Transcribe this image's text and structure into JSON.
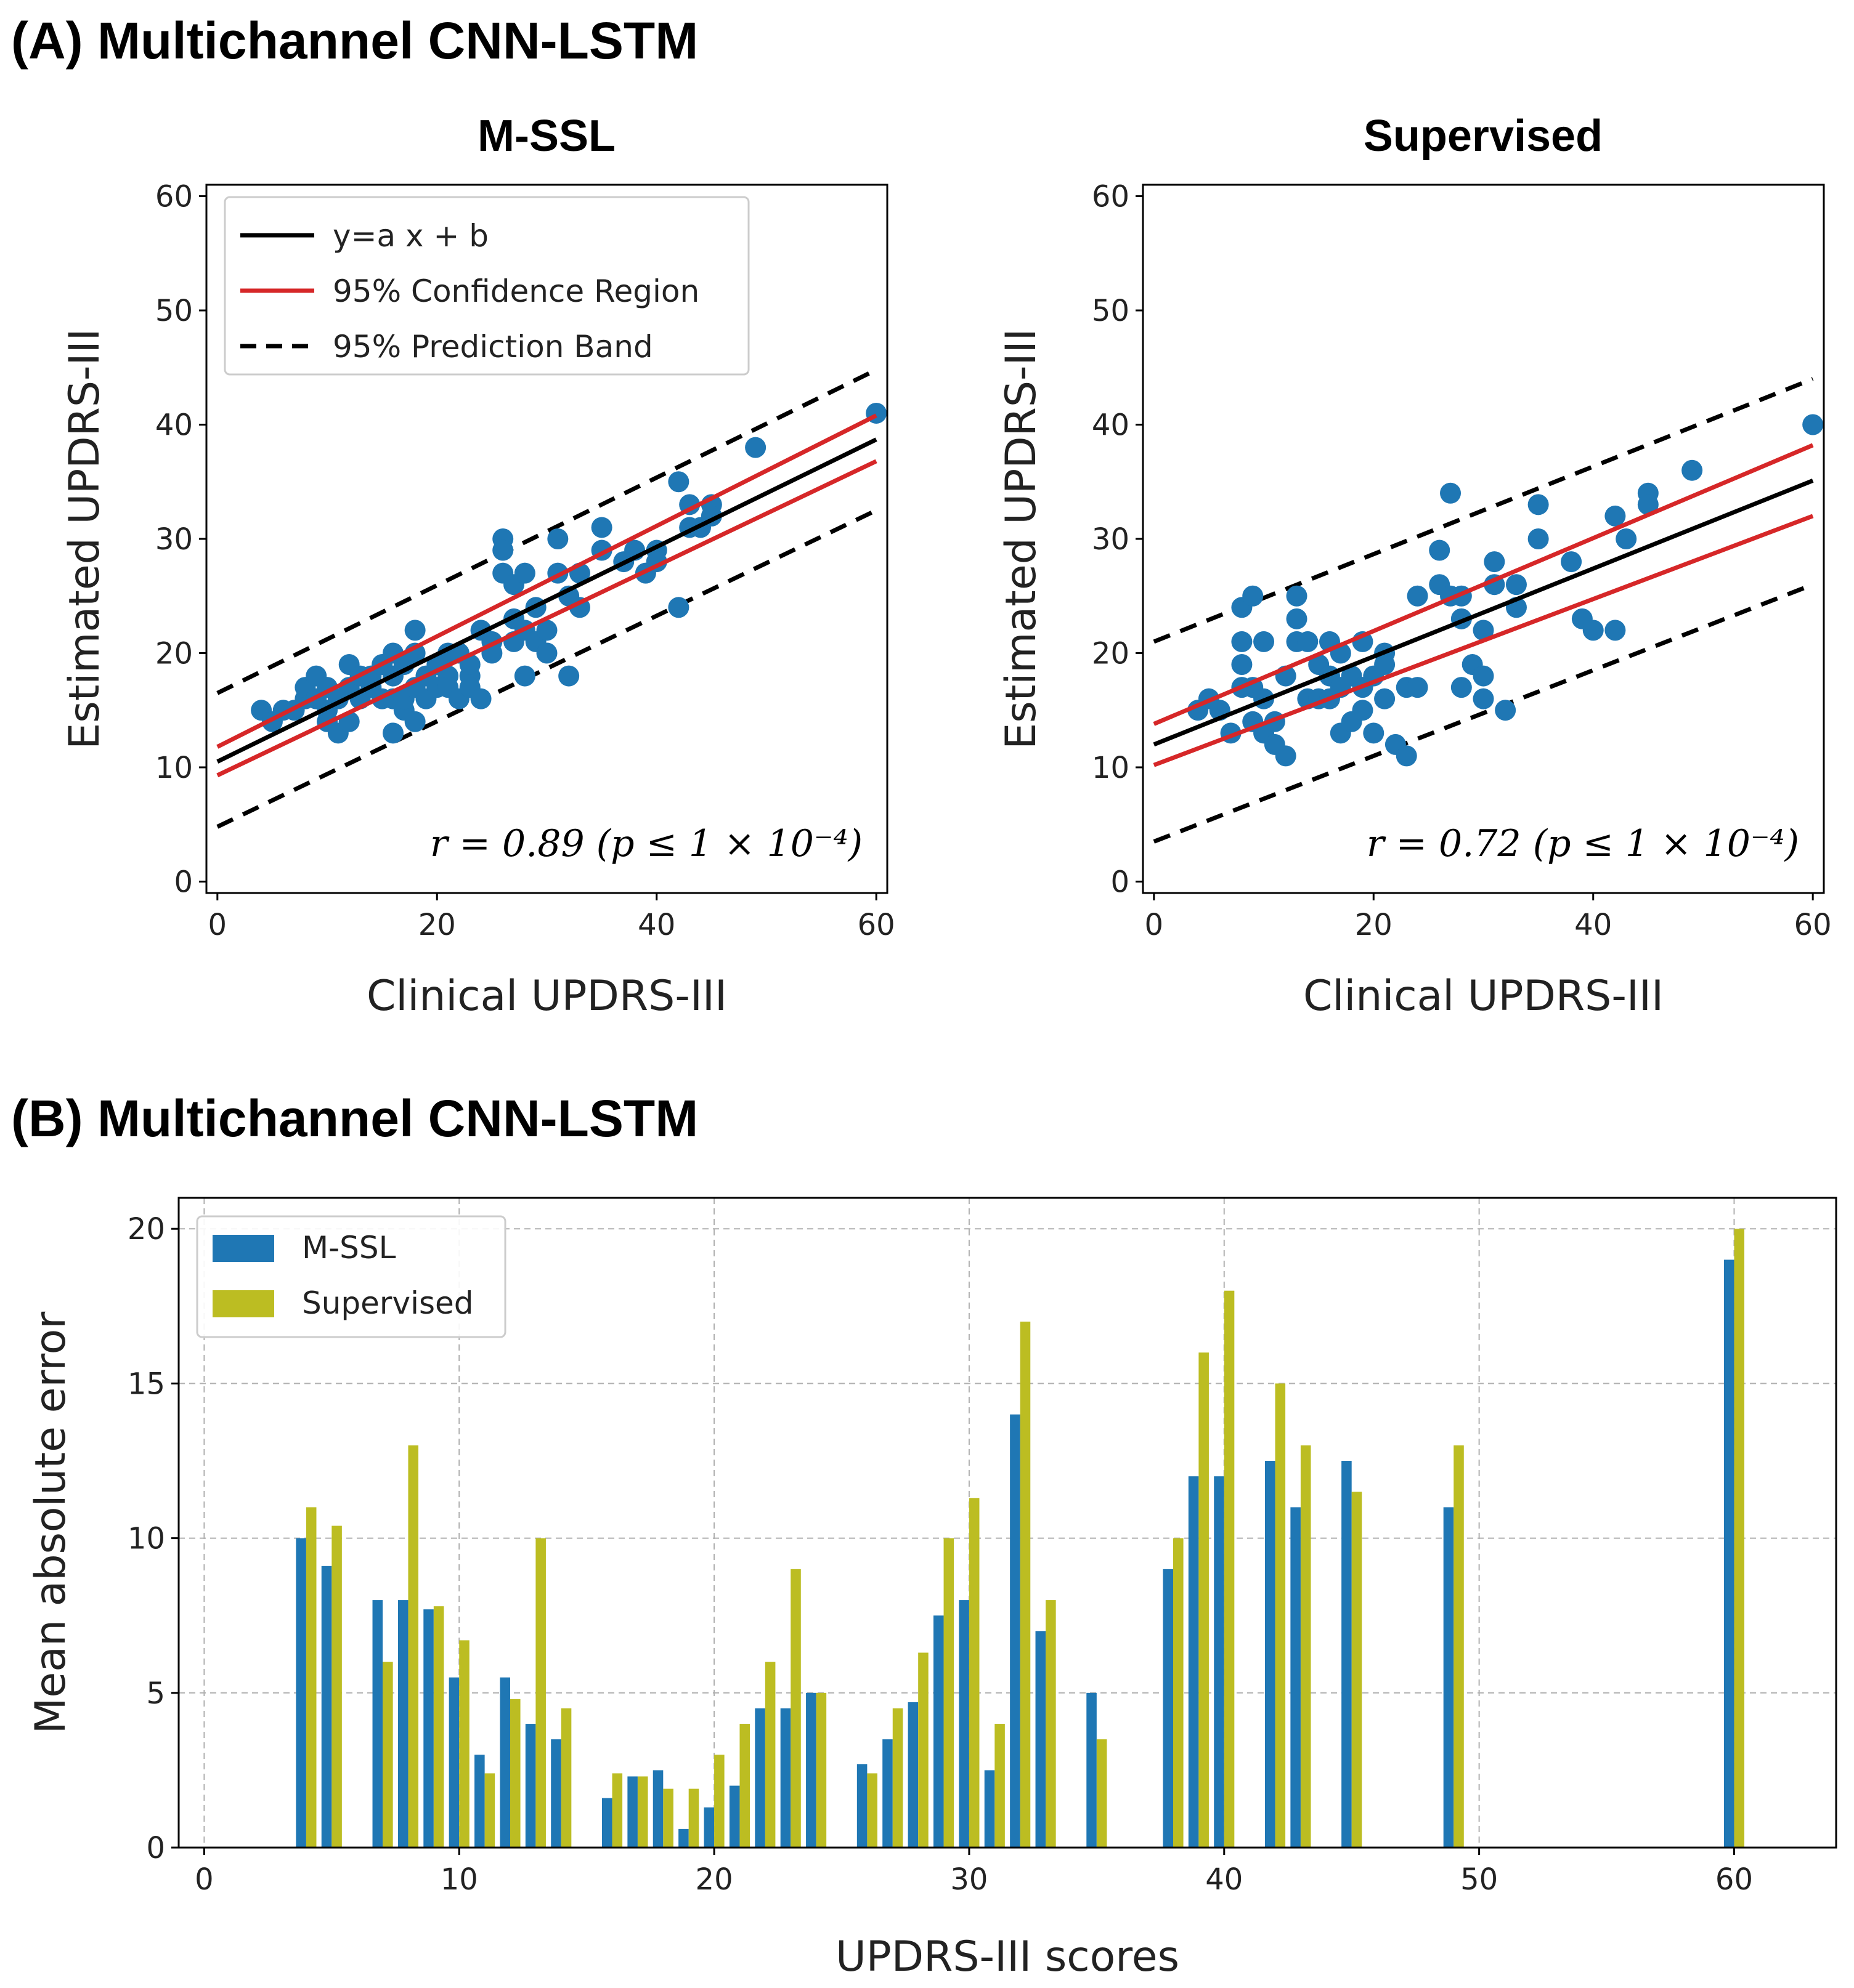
{
  "headings": {
    "a": "(A) Multichannel CNN-LSTM",
    "b": "(B) Multichannel CNN-LSTM"
  },
  "chart_data": [
    {
      "type": "scatter",
      "title": "M-SSL",
      "xlabel": "Clinical UPDRS-III",
      "ylabel": "Estimated UPDRS-III",
      "xlim": [
        -1,
        61
      ],
      "ylim": [
        -1,
        61
      ],
      "xticks": [
        0,
        20,
        40,
        60
      ],
      "yticks": [
        0,
        10,
        20,
        30,
        40,
        50,
        60
      ],
      "annotation": "r = 0.89 (p ≤ 1 × 10⁻⁴)",
      "legend": {
        "position": "top-left",
        "entries": [
          "y=a x + b",
          "95% Confidence Region",
          "95% Prediction Band"
        ]
      },
      "fit": {
        "slope": 0.47,
        "intercept": 10.5
      },
      "confidence": {
        "lower": [
          [
            0,
            9.3
          ],
          [
            60,
            36.8
          ]
        ],
        "upper": [
          [
            0,
            11.8
          ],
          [
            60,
            40.8
          ]
        ]
      },
      "prediction": {
        "lower": [
          [
            0,
            4.8
          ],
          [
            60,
            32.5
          ]
        ],
        "upper": [
          [
            0,
            16.5
          ],
          [
            60,
            44.8
          ]
        ]
      },
      "points": [
        [
          4,
          15
        ],
        [
          5,
          14
        ],
        [
          6,
          15
        ],
        [
          7,
          15
        ],
        [
          8,
          16
        ],
        [
          8,
          17
        ],
        [
          9,
          16
        ],
        [
          9,
          18
        ],
        [
          10,
          15
        ],
        [
          10,
          17
        ],
        [
          10,
          14
        ],
        [
          11,
          13
        ],
        [
          11,
          16
        ],
        [
          12,
          19
        ],
        [
          12,
          17
        ],
        [
          12,
          14
        ],
        [
          13,
          18
        ],
        [
          13,
          16
        ],
        [
          14,
          17
        ],
        [
          14,
          18
        ],
        [
          15,
          16
        ],
        [
          15,
          19
        ],
        [
          16,
          13
        ],
        [
          16,
          16
        ],
        [
          16,
          18
        ],
        [
          16,
          20
        ],
        [
          17,
          15
        ],
        [
          17,
          16
        ],
        [
          17,
          19
        ],
        [
          18,
          22
        ],
        [
          18,
          17
        ],
        [
          18,
          14
        ],
        [
          18,
          20
        ],
        [
          19,
          18
        ],
        [
          19,
          16
        ],
        [
          20,
          19
        ],
        [
          20,
          17
        ],
        [
          21,
          18
        ],
        [
          21,
          20
        ],
        [
          21,
          17
        ],
        [
          22,
          20
        ],
        [
          22,
          16
        ],
        [
          23,
          18
        ],
        [
          23,
          19
        ],
        [
          23,
          17
        ],
        [
          24,
          16
        ],
        [
          24,
          22
        ],
        [
          25,
          21
        ],
        [
          25,
          20
        ],
        [
          26,
          27
        ],
        [
          26,
          30
        ],
        [
          26,
          29
        ],
        [
          27,
          26
        ],
        [
          27,
          23
        ],
        [
          27,
          21
        ],
        [
          28,
          18
        ],
        [
          28,
          27
        ],
        [
          28,
          22
        ],
        [
          29,
          24
        ],
        [
          29,
          21
        ],
        [
          30,
          20
        ],
        [
          30,
          22
        ],
        [
          31,
          27
        ],
        [
          31,
          30
        ],
        [
          32,
          25
        ],
        [
          32,
          18
        ],
        [
          33,
          27
        ],
        [
          33,
          24
        ],
        [
          35,
          31
        ],
        [
          35,
          29
        ],
        [
          37,
          28
        ],
        [
          38,
          29
        ],
        [
          39,
          27
        ],
        [
          40,
          29
        ],
        [
          40,
          28
        ],
        [
          42,
          35
        ],
        [
          42,
          24
        ],
        [
          43,
          31
        ],
        [
          43,
          33
        ],
        [
          44,
          31
        ],
        [
          45,
          33
        ],
        [
          45,
          32
        ],
        [
          49,
          38
        ],
        [
          60,
          41
        ]
      ]
    },
    {
      "type": "scatter",
      "title": "Supervised",
      "xlabel": "Clinical UPDRS-III",
      "ylabel": "Estimated UPDRS-III",
      "xlim": [
        -1,
        61
      ],
      "ylim": [
        -1,
        61
      ],
      "xticks": [
        0,
        20,
        40,
        60
      ],
      "yticks": [
        0,
        10,
        20,
        30,
        40,
        50,
        60
      ],
      "annotation": "r = 0.72 (p ≤ 1 × 10⁻⁴)",
      "fit": {
        "slope": 0.385,
        "intercept": 12
      },
      "confidence": {
        "lower": [
          [
            0,
            10.2
          ],
          [
            60,
            32
          ]
        ],
        "upper": [
          [
            0,
            13.8
          ],
          [
            60,
            38.2
          ]
        ]
      },
      "prediction": {
        "lower": [
          [
            0,
            3.5
          ],
          [
            60,
            26
          ]
        ],
        "upper": [
          [
            0,
            21
          ],
          [
            60,
            44
          ]
        ]
      },
      "points": [
        [
          4,
          15
        ],
        [
          5,
          16
        ],
        [
          6,
          15
        ],
        [
          7,
          13
        ],
        [
          8,
          24
        ],
        [
          8,
          17
        ],
        [
          8,
          21
        ],
        [
          8,
          19
        ],
        [
          9,
          25
        ],
        [
          9,
          17
        ],
        [
          9,
          14
        ],
        [
          10,
          21
        ],
        [
          10,
          16
        ],
        [
          10,
          13
        ],
        [
          11,
          12
        ],
        [
          11,
          14
        ],
        [
          12,
          11
        ],
        [
          12,
          18
        ],
        [
          13,
          25
        ],
        [
          13,
          23
        ],
        [
          13,
          21
        ],
        [
          14,
          21
        ],
        [
          14,
          16
        ],
        [
          15,
          19
        ],
        [
          15,
          16
        ],
        [
          16,
          21
        ],
        [
          16,
          18
        ],
        [
          16,
          16
        ],
        [
          17,
          20
        ],
        [
          17,
          17
        ],
        [
          17,
          13
        ],
        [
          18,
          18
        ],
        [
          18,
          14
        ],
        [
          19,
          21
        ],
        [
          19,
          15
        ],
        [
          19,
          17
        ],
        [
          20,
          13
        ],
        [
          20,
          18
        ],
        [
          21,
          20
        ],
        [
          21,
          16
        ],
        [
          21,
          19
        ],
        [
          22,
          12
        ],
        [
          23,
          11
        ],
        [
          23,
          17
        ],
        [
          24,
          17
        ],
        [
          24,
          25
        ],
        [
          26,
          29
        ],
        [
          26,
          26
        ],
        [
          27,
          34
        ],
        [
          27,
          25
        ],
        [
          28,
          23
        ],
        [
          28,
          25
        ],
        [
          28,
          17
        ],
        [
          29,
          19
        ],
        [
          30,
          18
        ],
        [
          30,
          16
        ],
        [
          30,
          22
        ],
        [
          31,
          28
        ],
        [
          31,
          26
        ],
        [
          32,
          15
        ],
        [
          33,
          26
        ],
        [
          33,
          24
        ],
        [
          35,
          33
        ],
        [
          35,
          30
        ],
        [
          38,
          28
        ],
        [
          39,
          23
        ],
        [
          40,
          22
        ],
        [
          42,
          22
        ],
        [
          42,
          32
        ],
        [
          43,
          30
        ],
        [
          45,
          34
        ],
        [
          45,
          33
        ],
        [
          49,
          36
        ],
        [
          60,
          40
        ]
      ]
    },
    {
      "type": "bar",
      "xlabel": "UPDRS-III scores",
      "ylabel": "Mean absolute error",
      "xlim": [
        -1,
        64
      ],
      "ylim": [
        0,
        21
      ],
      "xticks": [
        0,
        10,
        20,
        30,
        40,
        50,
        60
      ],
      "yticks": [
        0,
        5,
        10,
        15,
        20
      ],
      "grid": true,
      "legend": {
        "position": "top-left"
      },
      "x": [
        4,
        5,
        7,
        8,
        9,
        10,
        11,
        12,
        13,
        14,
        16,
        17,
        18,
        19,
        20,
        21,
        22,
        23,
        24,
        26,
        27,
        28,
        29,
        30,
        31,
        32,
        33,
        35,
        38,
        39,
        40,
        42,
        43,
        45,
        49,
        60
      ],
      "series": [
        {
          "name": "M-SSL",
          "color": "#1f77b4",
          "values": [
            10,
            9.1,
            8,
            8,
            7.7,
            5.5,
            3,
            5.5,
            4,
            3.5,
            1.6,
            2.3,
            2.5,
            0.6,
            1.3,
            2,
            4.5,
            4.5,
            5,
            2.7,
            3.5,
            4.7,
            7.5,
            8,
            2.5,
            14,
            7,
            5,
            9,
            12,
            12,
            12.5,
            11,
            12.5,
            11,
            19
          ]
        },
        {
          "name": "Supervised",
          "color": "#bcbd22",
          "values": [
            11,
            10.4,
            6,
            13,
            7.8,
            6.7,
            2.4,
            4.8,
            10,
            4.5,
            2.4,
            2.3,
            1.9,
            1.9,
            3,
            4,
            6,
            9,
            5,
            2.4,
            4.5,
            6.3,
            10,
            11.3,
            4,
            17,
            8,
            3.5,
            10,
            16,
            18,
            15,
            13,
            11.5,
            13,
            20
          ]
        }
      ]
    }
  ]
}
